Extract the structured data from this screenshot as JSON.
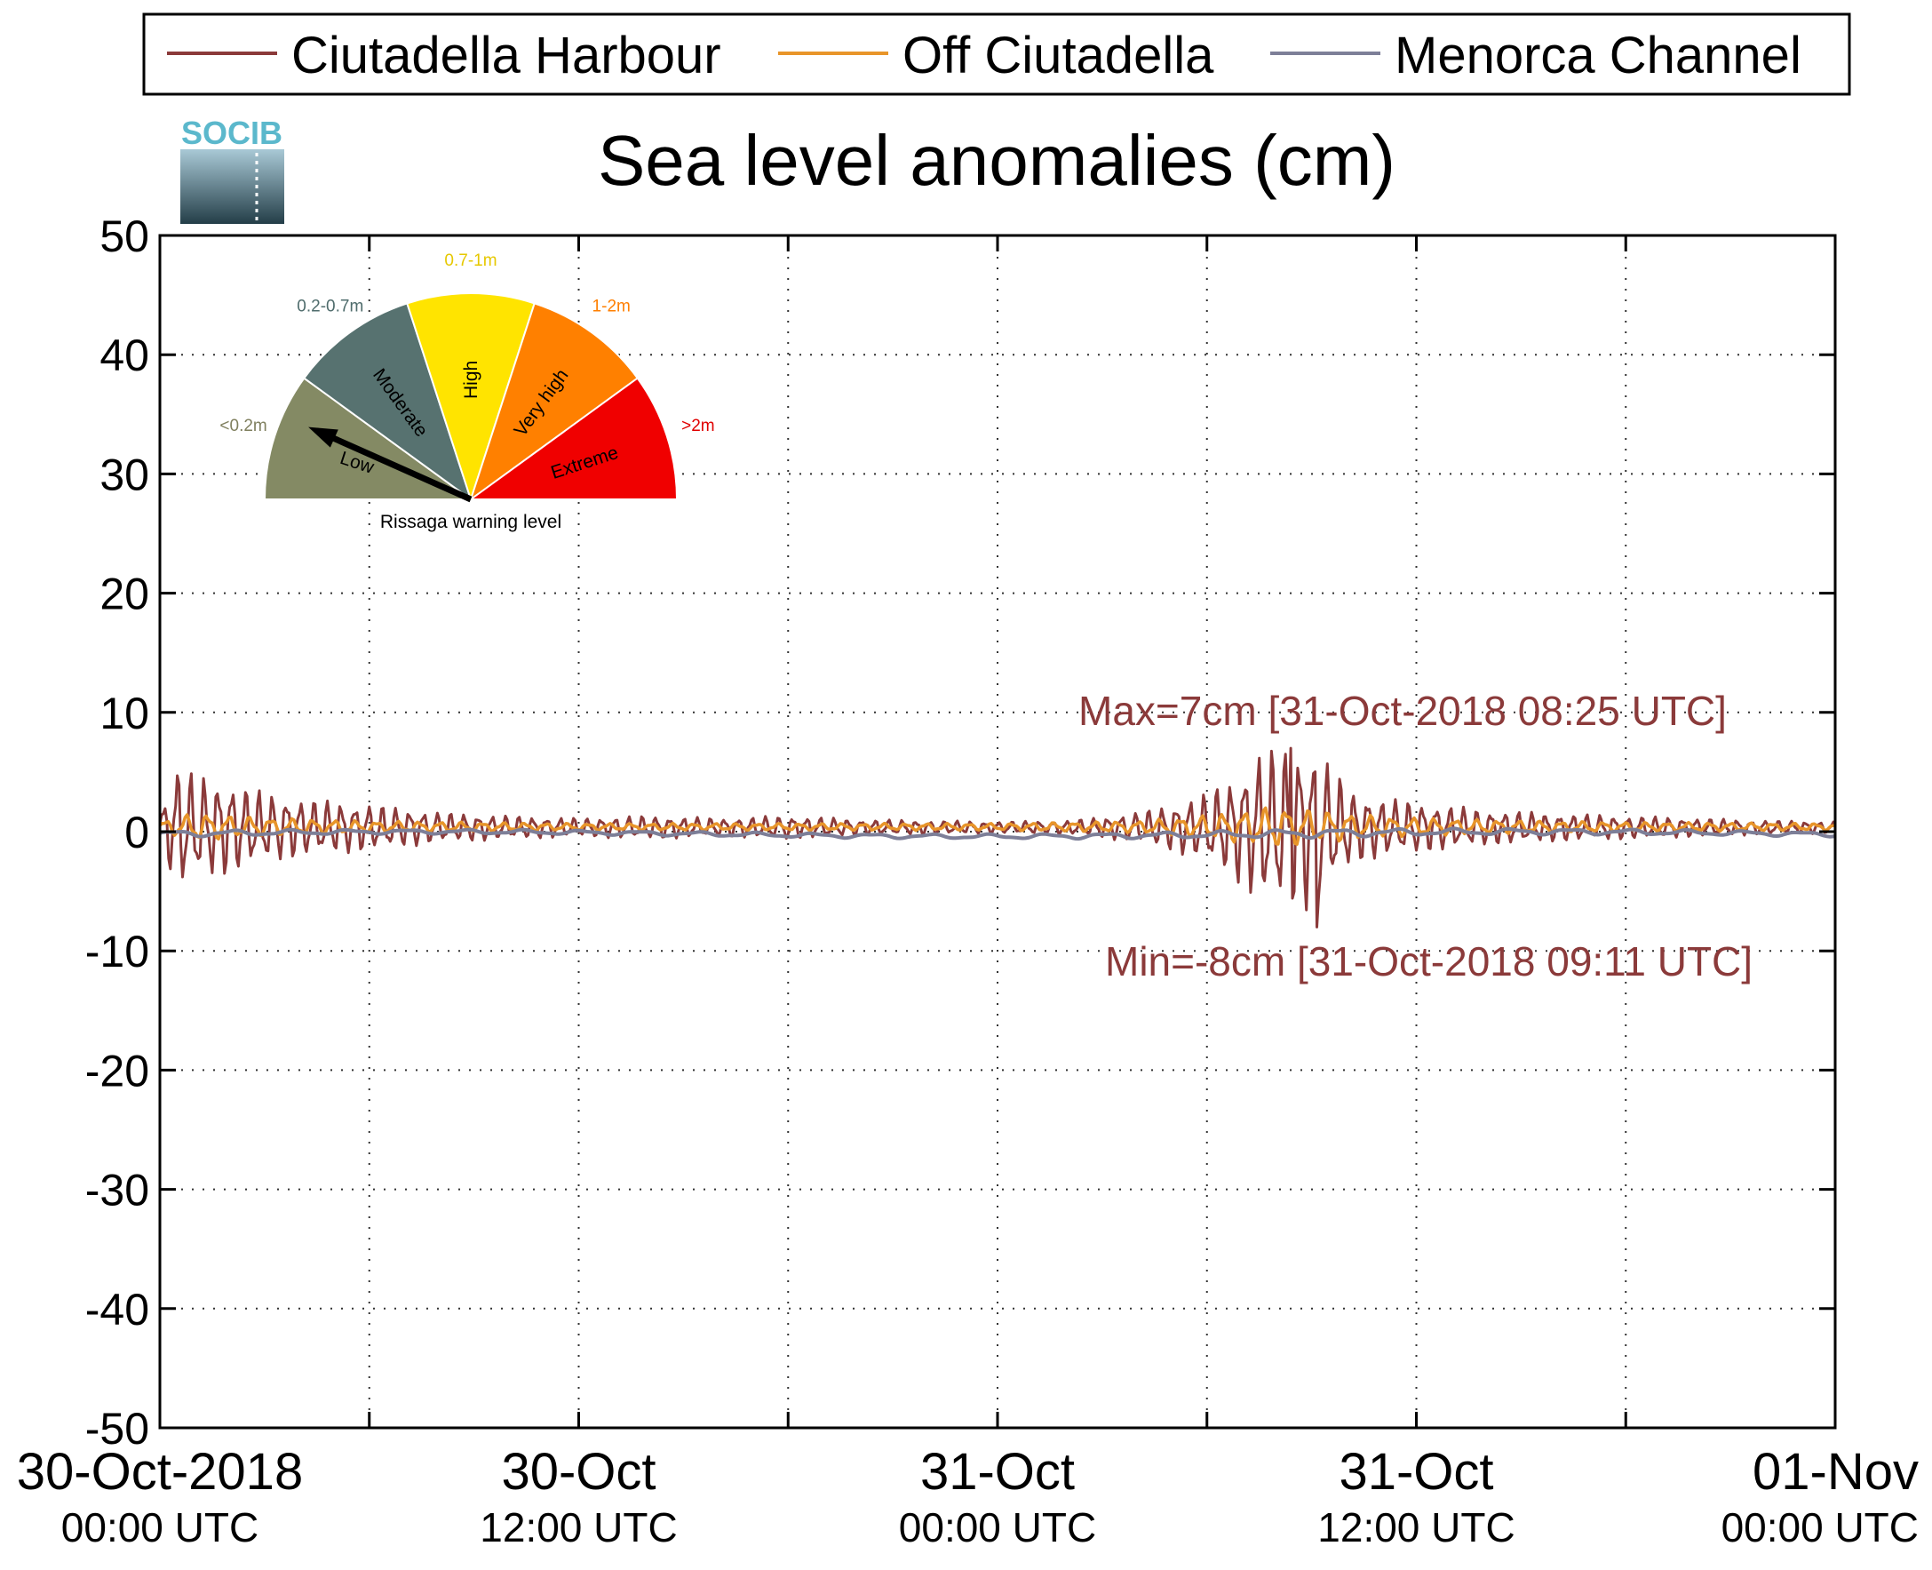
{
  "chart_data": {
    "type": "line",
    "title": "Sea level anomalies (cm)",
    "xlabel": "",
    "ylabel": "",
    "ylim": [
      -50,
      50
    ],
    "yticks": [
      50,
      40,
      30,
      20,
      10,
      0,
      -10,
      -20,
      -30,
      -40,
      -50
    ],
    "xlim_hours": [
      0,
      48
    ],
    "xticks": [
      {
        "hour": 0,
        "date": "30-Oct-2018",
        "time": "00:00 UTC"
      },
      {
        "hour": 12,
        "date": "30-Oct",
        "time": "12:00 UTC"
      },
      {
        "hour": 24,
        "date": "31-Oct",
        "time": "00:00 UTC"
      },
      {
        "hour": 36,
        "date": "31-Oct",
        "time": "12:00 UTC"
      },
      {
        "hour": 48,
        "date": "01-Nov",
        "time": "00:00 UTC"
      }
    ],
    "grid": true,
    "legend_position": "top",
    "series": [
      {
        "name": "Ciutadella Harbour",
        "color": "#8b3a3a",
        "envelope": [
          [
            0,
            1.5
          ],
          [
            0.5,
            5.5
          ],
          [
            1,
            4.5
          ],
          [
            2,
            4
          ],
          [
            3,
            3
          ],
          [
            4,
            2.5
          ],
          [
            6,
            2
          ],
          [
            8,
            1.3
          ],
          [
            10,
            1.0
          ],
          [
            12,
            0.8
          ],
          [
            14,
            1.0
          ],
          [
            16,
            0.8
          ],
          [
            18,
            1.0
          ],
          [
            20,
            0.7
          ],
          [
            22,
            0.6
          ],
          [
            24,
            0.5
          ],
          [
            26,
            0.6
          ],
          [
            27,
            0.9
          ],
          [
            28,
            1.3
          ],
          [
            29,
            2
          ],
          [
            30,
            3
          ],
          [
            30.8,
            4.5
          ],
          [
            31.5,
            6.5
          ],
          [
            32.4,
            7.2
          ],
          [
            33.1,
            7
          ],
          [
            33.6,
            5
          ],
          [
            34.2,
            3.2
          ],
          [
            35,
            2.5
          ],
          [
            36,
            2.2
          ],
          [
            38,
            1.5
          ],
          [
            40,
            1.2
          ],
          [
            42,
            1
          ],
          [
            44,
            0.8
          ],
          [
            46,
            0.6
          ],
          [
            48,
            0.5
          ]
        ],
        "max": {
          "value": 7,
          "label": "Max=7cm [31-Oct-2018 08:25 UTC]"
        },
        "min": {
          "value": -8,
          "label": "Min=-8cm [31-Oct-2018 09:11 UTC]"
        }
      },
      {
        "name": "Off Ciutadella",
        "color": "#e8952a",
        "envelope": [
          [
            0,
            0.5
          ],
          [
            1,
            1.2
          ],
          [
            3,
            0.8
          ],
          [
            6,
            0.5
          ],
          [
            12,
            0.3
          ],
          [
            18,
            0.3
          ],
          [
            24,
            0.3
          ],
          [
            28,
            0.5
          ],
          [
            30,
            1
          ],
          [
            32,
            1.8
          ],
          [
            33,
            1.5
          ],
          [
            35,
            0.9
          ],
          [
            38,
            0.6
          ],
          [
            42,
            0.4
          ],
          [
            48,
            0.3
          ]
        ]
      },
      {
        "name": "Menorca Channel",
        "color": "#7d7f98",
        "envelope": [
          [
            0,
            0.3
          ],
          [
            6,
            0.2
          ],
          [
            12,
            0.2
          ],
          [
            24,
            0.2
          ],
          [
            30,
            0.3
          ],
          [
            33,
            0.4
          ],
          [
            36,
            0.3
          ],
          [
            48,
            0.2
          ]
        ]
      }
    ]
  },
  "gauge": {
    "caption": "Rissaga warning level",
    "segments": [
      {
        "range": "<0.2m",
        "level": "Low",
        "color": "#848a64",
        "range_color": "#7f7f5e"
      },
      {
        "range": "0.2-0.7m",
        "level": "Moderate",
        "color": "#577270",
        "range_color": "#4f6c6c"
      },
      {
        "range": "0.7-1m",
        "level": "High",
        "color": "#ffe400",
        "range_color": "#e6c800"
      },
      {
        "range": "1-2m",
        "level": "Very high",
        "color": "#ff8000",
        "range_color": "#ff7f00"
      },
      {
        "range": ">2m",
        "level": "Extreme",
        "color": "#f00000",
        "range_color": "#e00000"
      }
    ],
    "needle_level": "Low"
  },
  "logo": {
    "text": "SOCIB"
  }
}
